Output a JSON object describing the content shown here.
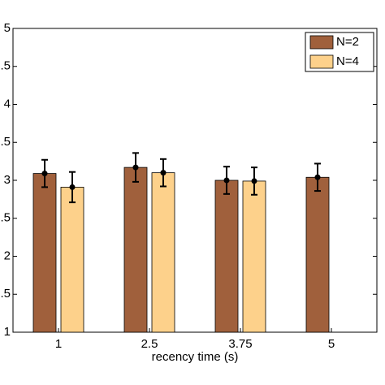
{
  "chart_data": {
    "type": "bar",
    "xlabel": "recency time (s)",
    "categories": [
      "1",
      "2.5",
      "3.75",
      "5"
    ],
    "series": [
      {
        "name": "N=2",
        "color": "#a0603c",
        "values": [
          3.09,
          3.17,
          3.0,
          3.04
        ],
        "errors": [
          0.18,
          0.19,
          0.18,
          0.18
        ]
      },
      {
        "name": "N=4",
        "color": "#fdd18b",
        "values": [
          2.91,
          3.1,
          2.99,
          null
        ],
        "errors": [
          0.2,
          0.18,
          0.18,
          null
        ]
      }
    ],
    "ylim": [
      1,
      5
    ],
    "yticks": [
      1,
      {
        "value": 1.5,
        "label": ".5"
      },
      2,
      {
        "value": 2.5,
        "label": ".5"
      },
      3,
      {
        "value": 3.5,
        "label": ".5"
      },
      4,
      {
        "value": 4.5,
        "label": ".5"
      },
      5
    ],
    "legend": "upper right"
  }
}
